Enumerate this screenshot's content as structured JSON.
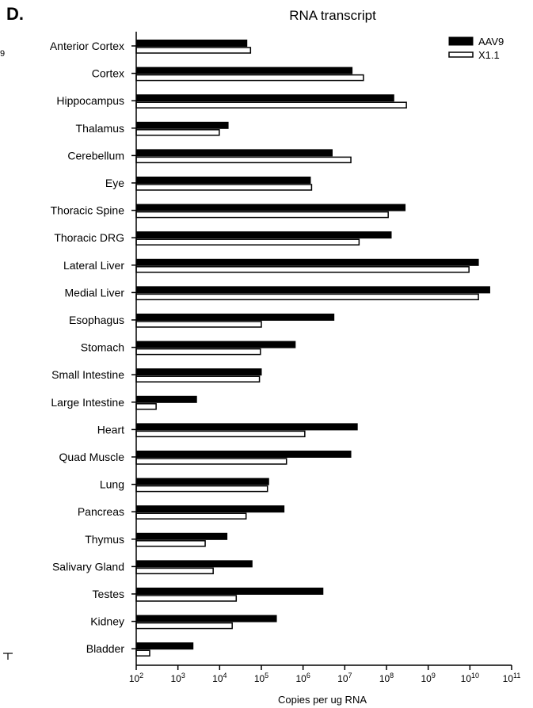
{
  "panel_letter": "D.",
  "stray_text": "9",
  "chart_data": {
    "type": "bar",
    "orientation": "horizontal",
    "title": "RNA transcript",
    "xlabel": "Copies per ug RNA",
    "ylabel": "",
    "xscale": "log",
    "xlim": [
      100,
      100000000000
    ],
    "x_tick_bases": [
      "10",
      "10",
      "10",
      "10",
      "10",
      "10",
      "10",
      "10",
      "10",
      "10"
    ],
    "x_tick_exponents": [
      "2",
      "3",
      "4",
      "5",
      "6",
      "7",
      "8",
      "9",
      "10",
      "11"
    ],
    "x_tick_values": [
      100,
      1000,
      10000,
      100000,
      1000000,
      10000000,
      100000000,
      1000000000,
      10000000000,
      100000000000
    ],
    "legend_position": "top-right",
    "categories": [
      "Anterior Cortex",
      "Cortex",
      "Hippocampus",
      "Thalamus",
      "Cerebellum",
      "Eye",
      "Thoracic Spine",
      "Thoracic DRG",
      "Lateral Liver",
      "Medial Liver",
      "Esophagus",
      "Stomach",
      "Small Intestine",
      "Large Intestine",
      "Heart",
      "Quad Muscle",
      "Lung",
      "Pancreas",
      "Thymus",
      "Salivary Gland",
      "Testes",
      "Kidney",
      "Bladder"
    ],
    "series": [
      {
        "name": "AAV9",
        "color": "#000000",
        "fill": "solid",
        "values": [
          45000,
          15000000,
          150000000,
          16000,
          5000000,
          1500000,
          280000000,
          130000000,
          16000000000,
          30000000000,
          5500000,
          650000,
          100000,
          2800,
          20000000,
          14000000,
          150000,
          350000,
          15000,
          60000,
          3000000,
          230000,
          2300
        ]
      },
      {
        "name": "X1.1",
        "color": "#000000",
        "fill": "hollow",
        "values": [
          55000,
          28000000,
          300000000,
          9800,
          14000000,
          1600000,
          110000000,
          22000000,
          9500000000,
          16000000000,
          100000,
          95000,
          90000,
          300,
          1100000,
          400000,
          140000,
          43000,
          4500,
          7000,
          25000,
          20000,
          210
        ]
      }
    ]
  }
}
